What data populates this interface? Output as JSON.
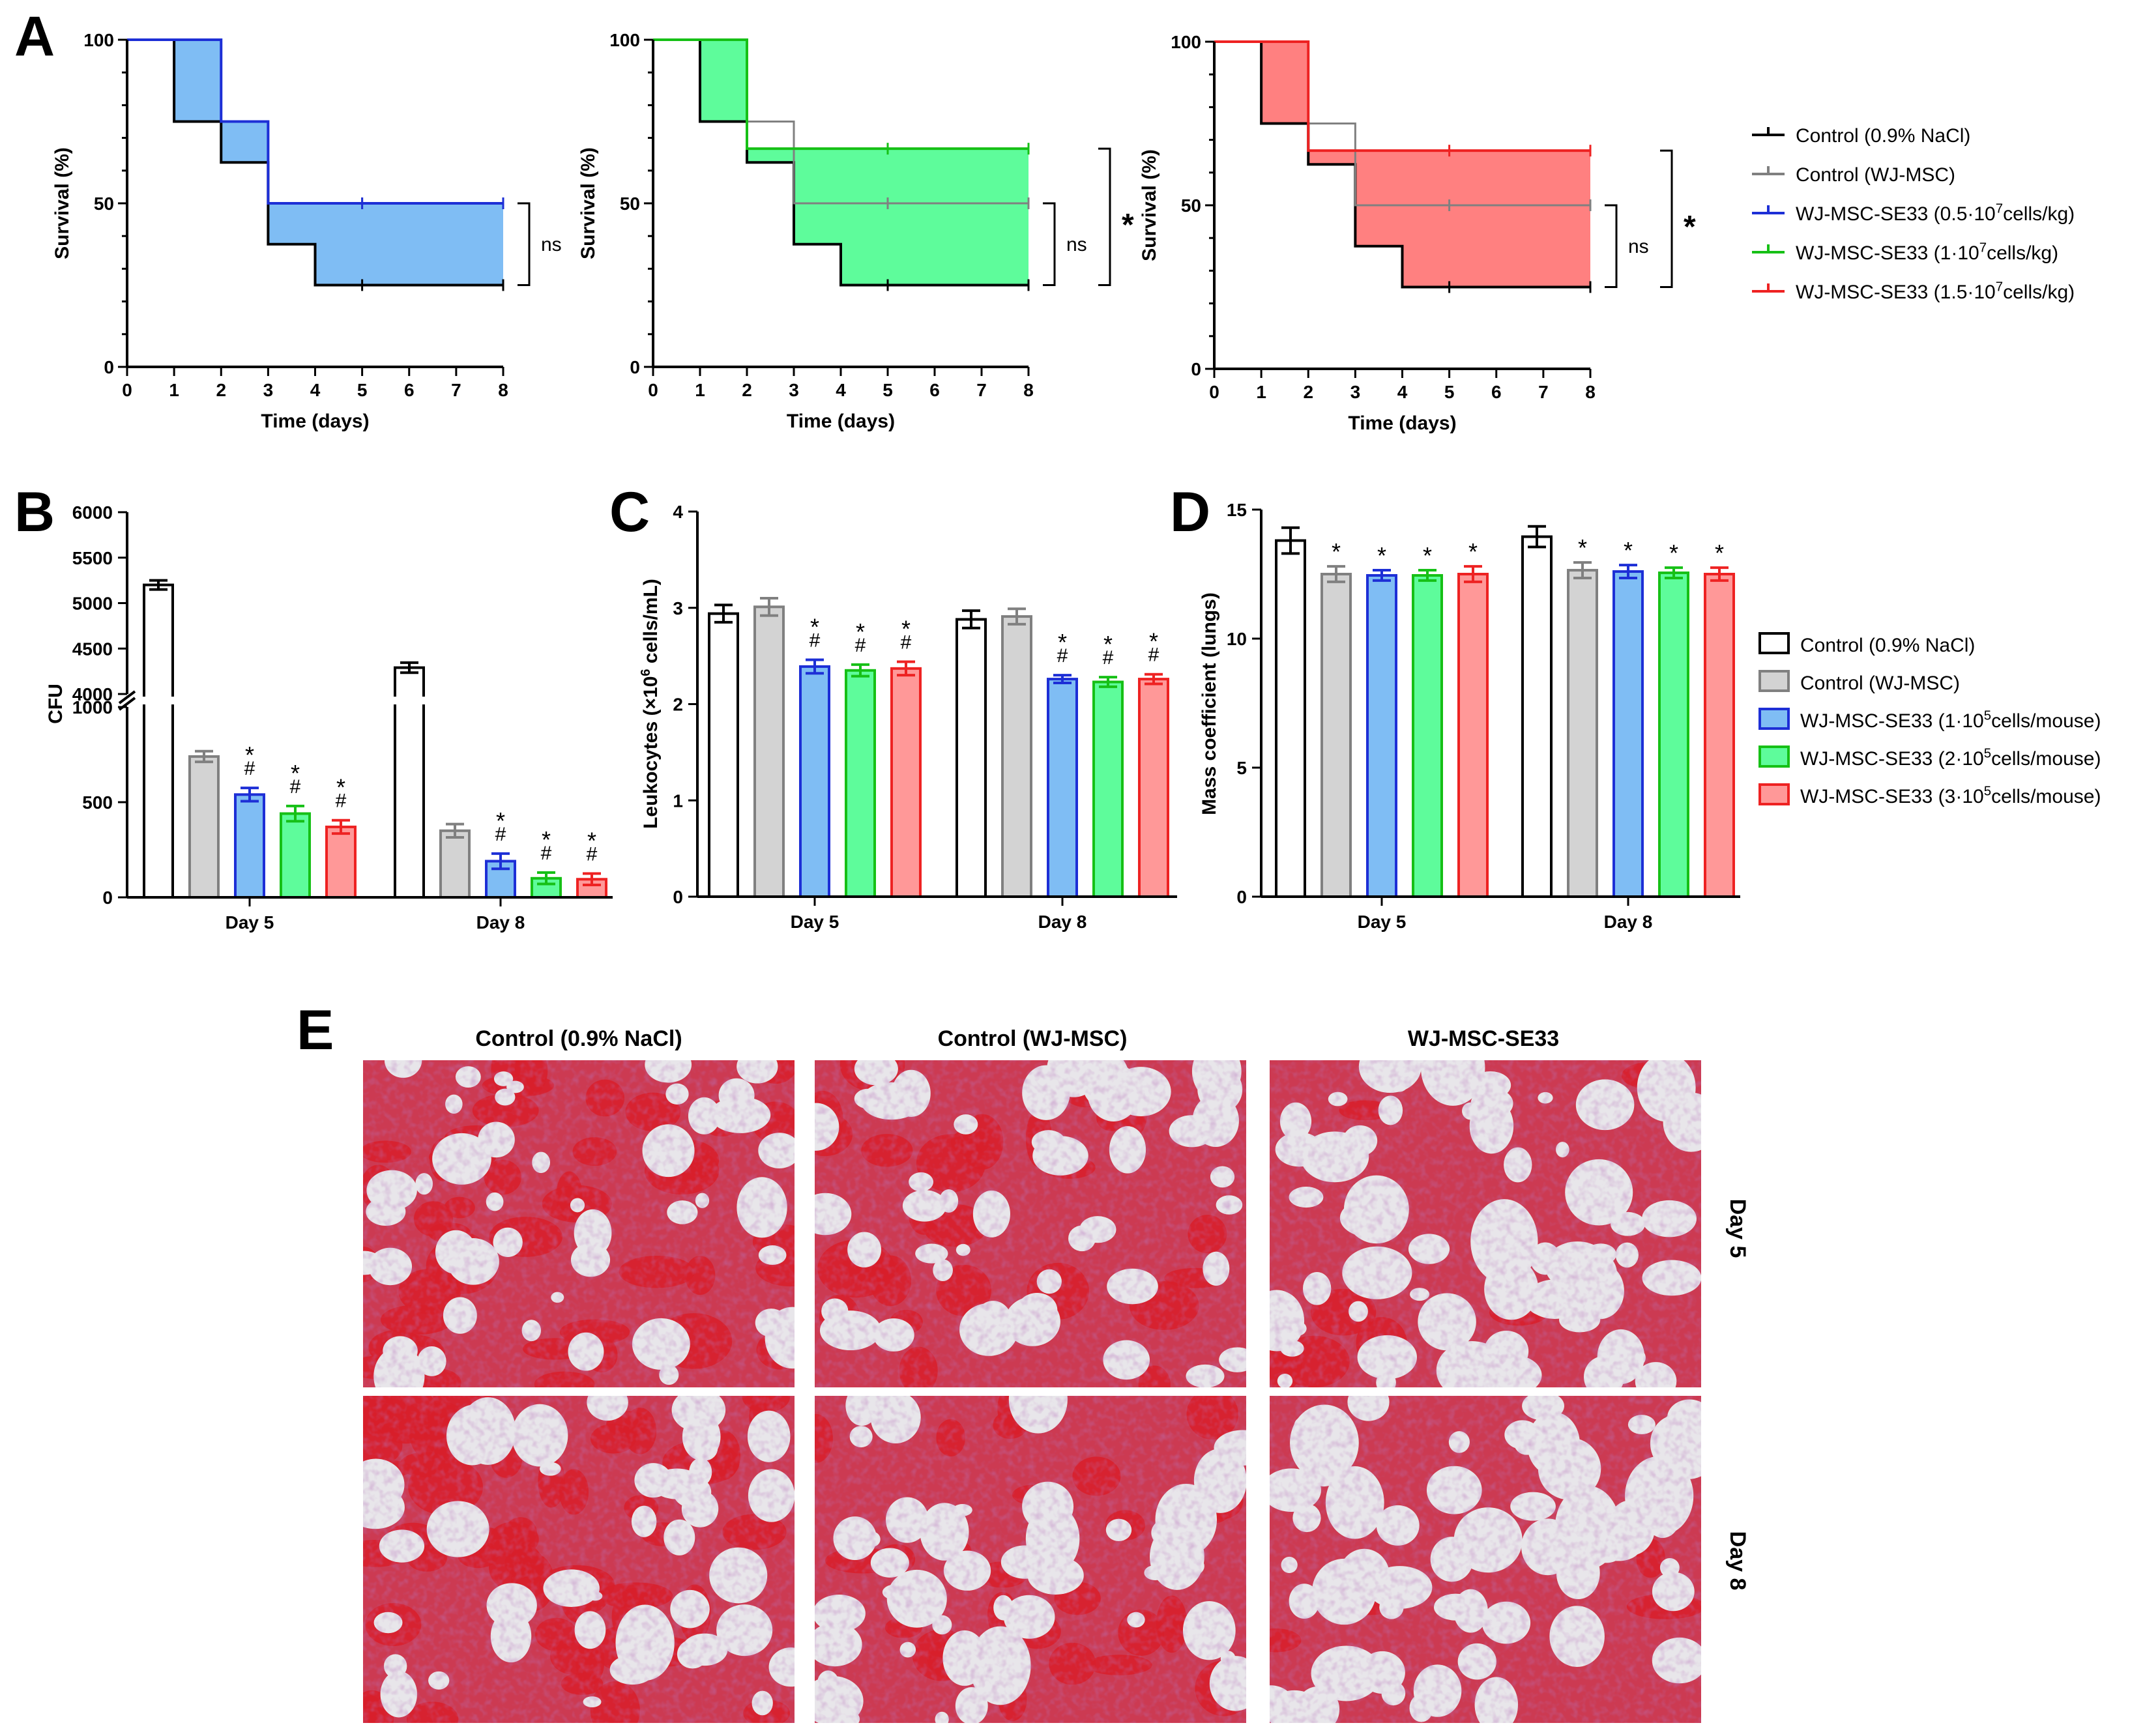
{
  "panel_labels": {
    "A": "A",
    "B": "B",
    "C": "C",
    "D": "D",
    "E": "E"
  },
  "chart_data": [
    {
      "id": "A1",
      "type": "line",
      "subtype": "survival-step",
      "xlabel": "Time (days)",
      "ylabel": "Survival (%)",
      "xlim": [
        0,
        8
      ],
      "ylim": [
        0,
        100
      ],
      "xticks": [
        0,
        1,
        2,
        3,
        4,
        5,
        6,
        7,
        8
      ],
      "yticks": [
        0,
        50,
        100
      ],
      "series": [
        {
          "name": "Control (0.9% NaCl)",
          "color": "#000000",
          "steps": [
            [
              0,
              100
            ],
            [
              1,
              75
            ],
            [
              2,
              62.5
            ],
            [
              3,
              37.5
            ],
            [
              4,
              25
            ],
            [
              8,
              25
            ]
          ]
        },
        {
          "name": "Control (WJ-MSC)",
          "color": "#808080",
          "steps": [
            [
              0,
              100
            ],
            [
              2,
              75
            ],
            [
              3,
              50
            ],
            [
              8,
              50
            ]
          ]
        },
        {
          "name": "WJ-MSC-SE33 (0.5·10^7cells/kg)",
          "color": "#1d2fd6",
          "fill": "#7fbdf4",
          "steps": [
            [
              0,
              100
            ],
            [
              2,
              75
            ],
            [
              3,
              50
            ],
            [
              8,
              50
            ]
          ]
        }
      ],
      "annotations": [
        {
          "text": "ns",
          "from": 50,
          "to": 25
        }
      ]
    },
    {
      "id": "A2",
      "type": "line",
      "subtype": "survival-step",
      "xlabel": "Time (days)",
      "ylabel": "Survival (%)",
      "xlim": [
        0,
        8
      ],
      "ylim": [
        0,
        100
      ],
      "xticks": [
        0,
        1,
        2,
        3,
        4,
        5,
        6,
        7,
        8
      ],
      "yticks": [
        0,
        50,
        100
      ],
      "series": [
        {
          "name": "Control (0.9% NaCl)",
          "color": "#000000",
          "steps": [
            [
              0,
              100
            ],
            [
              1,
              75
            ],
            [
              2,
              62.5
            ],
            [
              3,
              37.5
            ],
            [
              4,
              25
            ],
            [
              8,
              25
            ]
          ]
        },
        {
          "name": "Control (WJ-MSC)",
          "color": "#808080",
          "steps": [
            [
              0,
              100
            ],
            [
              2,
              75
            ],
            [
              3,
              50
            ],
            [
              8,
              50
            ]
          ]
        },
        {
          "name": "WJ-MSC-SE33 (1·10^7cells/kg)",
          "color": "#16c016",
          "fill": "#5efc9b",
          "steps": [
            [
              0,
              100
            ],
            [
              2,
              66.7
            ],
            [
              8,
              66.7
            ]
          ]
        }
      ],
      "annotations": [
        {
          "text": "ns",
          "from": 50,
          "to": 25
        },
        {
          "text": "*",
          "from": 66.7,
          "to": 25
        }
      ]
    },
    {
      "id": "A3",
      "type": "line",
      "subtype": "survival-step",
      "xlabel": "Time (days)",
      "ylabel": "Survival (%)",
      "xlim": [
        0,
        8
      ],
      "ylim": [
        0,
        100
      ],
      "xticks": [
        0,
        1,
        2,
        3,
        4,
        5,
        6,
        7,
        8
      ],
      "yticks": [
        0,
        50,
        100
      ],
      "series": [
        {
          "name": "Control (0.9% NaCl)",
          "color": "#000000",
          "steps": [
            [
              0,
              100
            ],
            [
              1,
              75
            ],
            [
              2,
              62.5
            ],
            [
              3,
              37.5
            ],
            [
              4,
              25
            ],
            [
              8,
              25
            ]
          ]
        },
        {
          "name": "Control (WJ-MSC)",
          "color": "#808080",
          "steps": [
            [
              0,
              100
            ],
            [
              2,
              75
            ],
            [
              3,
              50
            ],
            [
              8,
              50
            ]
          ]
        },
        {
          "name": "WJ-MSC-SE33 (1.5·10^7cells/kg)",
          "color": "#ee2222",
          "fill": "#ff8080",
          "steps": [
            [
              0,
              100
            ],
            [
              1,
              100
            ],
            [
              2,
              66.7
            ],
            [
              8,
              66.7
            ]
          ]
        }
      ],
      "annotations": [
        {
          "text": "ns",
          "from": 50,
          "to": 25
        },
        {
          "text": "*",
          "from": 66.7,
          "to": 25
        }
      ]
    },
    {
      "id": "B",
      "type": "bar",
      "ylabel": "CFU",
      "broken_axis": true,
      "categories": [
        "Day 5",
        "Day 8"
      ],
      "ylim_lower": [
        0,
        1000
      ],
      "yticks_lower": [
        0,
        500,
        1000
      ],
      "ylim_upper": [
        4000,
        6000
      ],
      "yticks_upper": [
        4000,
        4500,
        5000,
        5500,
        6000
      ],
      "series": [
        {
          "name": "Control (0.9% NaCl)",
          "values": [
            5200,
            4290
          ],
          "errors": [
            50,
            55
          ],
          "marks": [
            "",
            ""
          ]
        },
        {
          "name": "Control (WJ-MSC)",
          "values": [
            740,
            350
          ],
          "errors": [
            28,
            35
          ],
          "marks": [
            "",
            ""
          ]
        },
        {
          "name": "WJ-MSC-SE33 (1·10^5cells/mouse)",
          "values": [
            540,
            190
          ],
          "errors": [
            35,
            40
          ],
          "marks": [
            "*#",
            "*#"
          ]
        },
        {
          "name": "WJ-MSC-SE33 (2·10^5cells/mouse)",
          "values": [
            440,
            100
          ],
          "errors": [
            40,
            30
          ],
          "marks": [
            "*#",
            "*#"
          ]
        },
        {
          "name": "WJ-MSC-SE33 (3·10^5cells/mouse)",
          "values": [
            370,
            95
          ],
          "errors": [
            35,
            30
          ],
          "marks": [
            "*#",
            "*#"
          ]
        }
      ]
    },
    {
      "id": "C",
      "type": "bar",
      "ylabel": "Leukocytes (×10^6 cells/mL)",
      "categories": [
        "Day 5",
        "Day 8"
      ],
      "ylim": [
        0,
        4
      ],
      "yticks": [
        0,
        1,
        2,
        3,
        4
      ],
      "series": [
        {
          "name": "Control (0.9% NaCl)",
          "values": [
            2.94,
            2.88
          ],
          "errors": [
            0.09,
            0.09
          ],
          "marks": [
            "",
            ""
          ]
        },
        {
          "name": "Control (WJ-MSC)",
          "values": [
            3.01,
            2.91
          ],
          "errors": [
            0.09,
            0.08
          ],
          "marks": [
            "",
            ""
          ]
        },
        {
          "name": "WJ-MSC-SE33 (1·10^5cells/mouse)",
          "values": [
            2.39,
            2.26
          ],
          "errors": [
            0.07,
            0.04
          ],
          "marks": [
            "*#",
            "*#"
          ]
        },
        {
          "name": "WJ-MSC-SE33 (2·10^5cells/mouse)",
          "values": [
            2.35,
            2.23
          ],
          "errors": [
            0.06,
            0.05
          ],
          "marks": [
            "*#",
            "*#"
          ]
        },
        {
          "name": "WJ-MSC-SE33 (3·10^5cells/mouse)",
          "values": [
            2.37,
            2.26
          ],
          "errors": [
            0.07,
            0.05
          ],
          "marks": [
            "*#",
            "*#"
          ]
        }
      ]
    },
    {
      "id": "D",
      "type": "bar",
      "ylabel": "Mass coefficient (lungs)",
      "categories": [
        "Day 5",
        "Day 8"
      ],
      "ylim": [
        0,
        15
      ],
      "yticks": [
        0,
        5,
        10,
        15
      ],
      "series": [
        {
          "name": "Control (0.9% NaCl)",
          "values": [
            13.8,
            13.95
          ],
          "errors": [
            0.5,
            0.4
          ],
          "marks": [
            "",
            ""
          ]
        },
        {
          "name": "Control (WJ-MSC)",
          "values": [
            12.5,
            12.65
          ],
          "errors": [
            0.3,
            0.3
          ],
          "marks": [
            "*",
            "*"
          ]
        },
        {
          "name": "WJ-MSC-SE33 (1·10^5cells/mouse)",
          "values": [
            12.45,
            12.6
          ],
          "errors": [
            0.2,
            0.25
          ],
          "marks": [
            "*",
            "*"
          ]
        },
        {
          "name": "WJ-MSC-SE33 (2·10^5cells/mouse)",
          "values": [
            12.45,
            12.55
          ],
          "errors": [
            0.2,
            0.2
          ],
          "marks": [
            "*",
            "*"
          ]
        },
        {
          "name": "WJ-MSC-SE33 (3·10^5cells/mouse)",
          "values": [
            12.5,
            12.5
          ],
          "errors": [
            0.3,
            0.25
          ],
          "marks": [
            "*",
            "*"
          ]
        }
      ]
    }
  ],
  "bar_colors": {
    "fills": [
      "#ffffff",
      "#d3d3d3",
      "#7fbdf4",
      "#5efc9b",
      "#ff9898"
    ],
    "strokes": [
      "#000000",
      "#808080",
      "#1d2fd6",
      "#16c016",
      "#ee2222"
    ]
  },
  "legend_A": [
    {
      "label": "Control (0.9% NaCl)",
      "color": "#000000"
    },
    {
      "label": "Control (WJ-MSC)",
      "color": "#808080"
    },
    {
      "label": "WJ-MSC-SE33 (0.5·10",
      "sup": "7",
      "tail": "cells/kg)",
      "color": "#1d2fd6"
    },
    {
      "label": "WJ-MSC-SE33 (1·10",
      "sup": "7",
      "tail": "cells/kg)",
      "color": "#16c016"
    },
    {
      "label": "WJ-MSC-SE33 (1.5·10",
      "sup": "7",
      "tail": "cells/kg)",
      "color": "#ee2222"
    }
  ],
  "legend_BCD": [
    {
      "label": "Control (0.9% NaCl)"
    },
    {
      "label": "Control (WJ-MSC)"
    },
    {
      "label": "WJ-MSC-SE33 (1·10",
      "sup": "5",
      "tail": "cells/mouse)"
    },
    {
      "label": "WJ-MSC-SE33 (2·10",
      "sup": "5",
      "tail": "cells/mouse)"
    },
    {
      "label": "WJ-MSC-SE33 (3·10",
      "sup": "5",
      "tail": "cells/mouse)"
    }
  ],
  "panel_E": {
    "columns": [
      "Control (0.9% NaCl)",
      "Control (WJ-MSC)",
      "WJ-MSC-SE33"
    ],
    "rows": [
      "Day 5",
      "Day 8"
    ],
    "tissue_colors": {
      "background": "#cc3a52",
      "air": "#e8e6ea",
      "blood": "#d81f2a",
      "nuclei": "#7a2e7e"
    }
  }
}
